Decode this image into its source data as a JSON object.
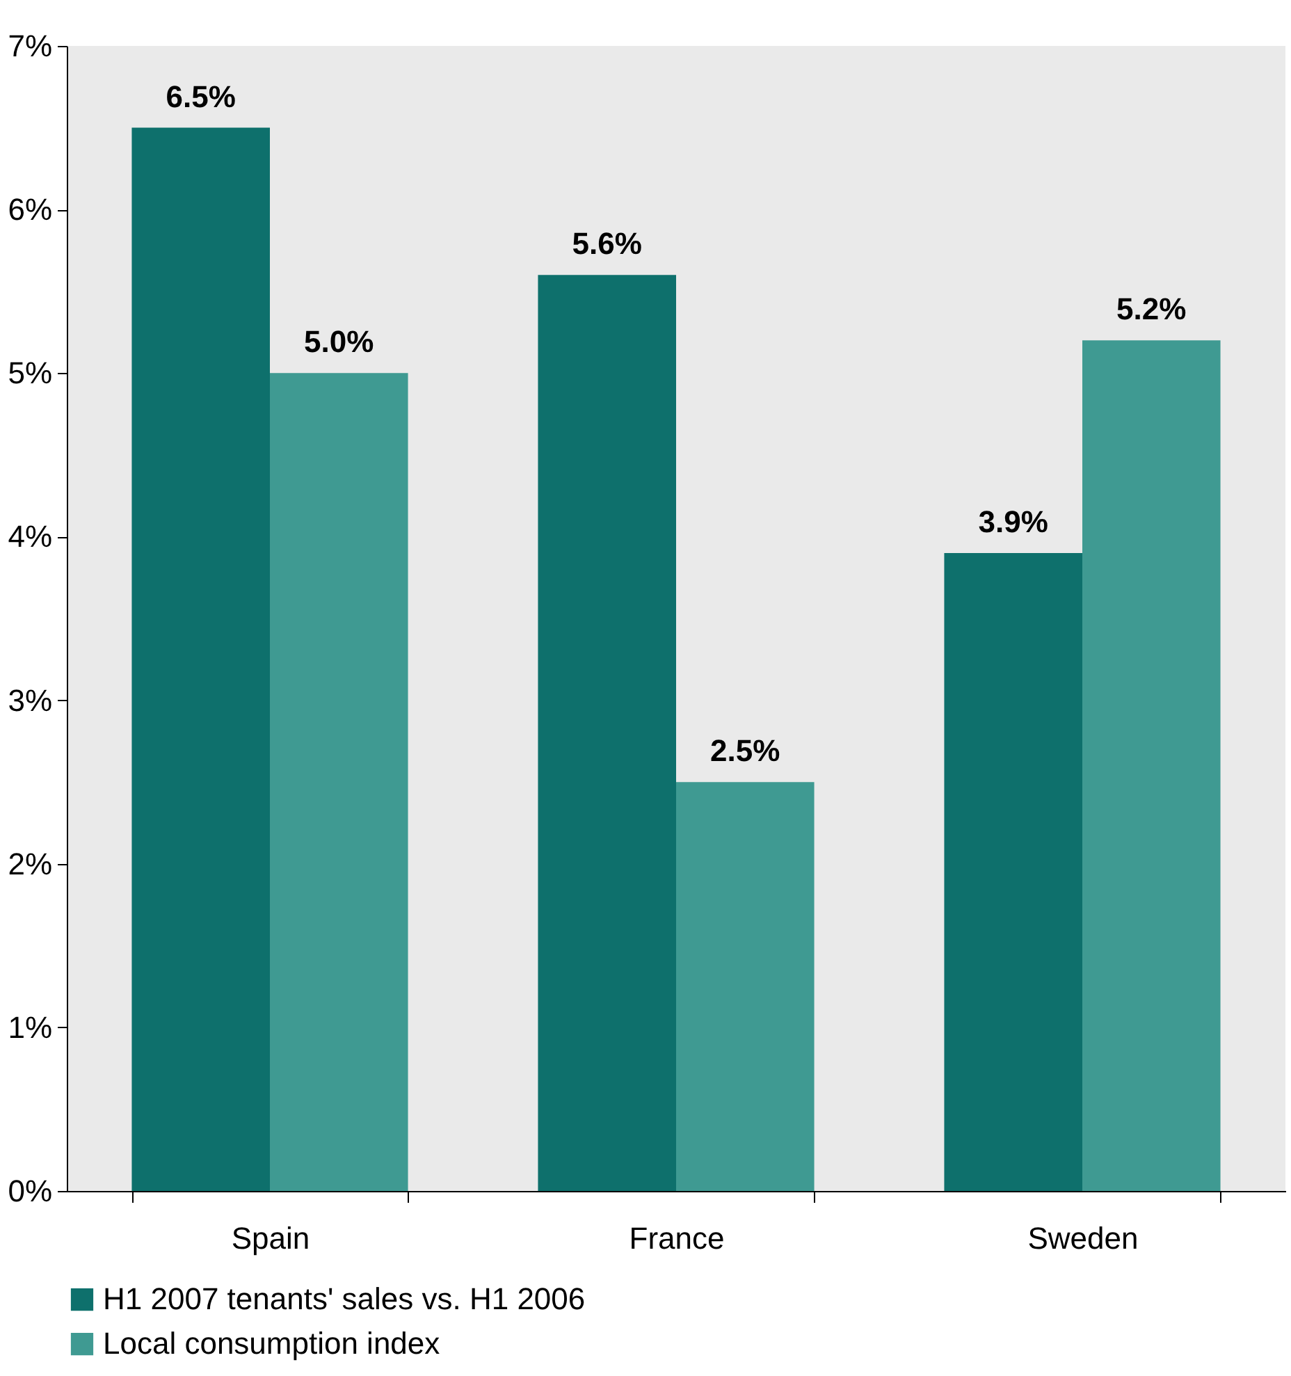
{
  "chart_data": {
    "type": "bar",
    "categories": [
      "Spain",
      "France",
      "Sweden"
    ],
    "series": [
      {
        "name": "H1 2007 tenants' sales vs. H1 2006",
        "color": "#0e706c",
        "values": [
          6.5,
          5.6,
          3.9
        ],
        "value_labels": [
          "6.5%",
          "5.6%",
          "3.9%"
        ]
      },
      {
        "name": "Local consumption index",
        "color": "#3f9a92",
        "values": [
          5.0,
          2.5,
          5.2
        ],
        "value_labels": [
          "5.0%",
          "2.5%",
          "5.2%"
        ]
      }
    ],
    "ylim": [
      0,
      7
    ],
    "yticks": [
      {
        "value": 0,
        "label": "0%"
      },
      {
        "value": 1,
        "label": "1%"
      },
      {
        "value": 2,
        "label": "2%"
      },
      {
        "value": 3,
        "label": "3%"
      },
      {
        "value": 4,
        "label": "4%"
      },
      {
        "value": 5,
        "label": "5%"
      },
      {
        "value": 6,
        "label": "6%"
      },
      {
        "value": 7,
        "label": "7%"
      }
    ],
    "grid": false,
    "legend": "bottom"
  }
}
